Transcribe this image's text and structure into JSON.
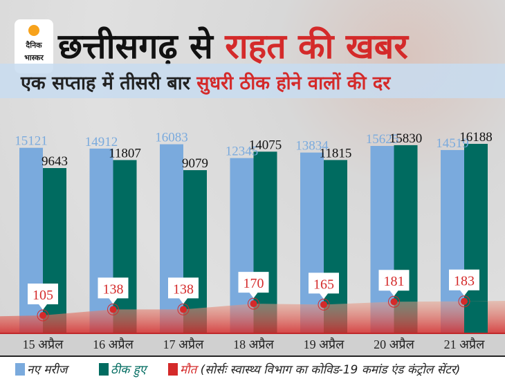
{
  "brand": {
    "logo_text": "दैनिक भास्कर",
    "colors": {
      "new": "#7aaadd",
      "recovered": "#006b60",
      "death": "#d42a2a"
    }
  },
  "header": {
    "title_black": "छत्तीसगढ़ से",
    "title_red": "राहत की खबर",
    "subtitle_black": "एक सप्ताह में तीसरी बार",
    "subtitle_red": "सुधरी ठीक होने वालों की दर"
  },
  "chart_data": {
    "type": "bar",
    "categories": [
      "15 अप्रैल",
      "16 अप्रैल",
      "17 अप्रैल",
      "18 अप्रैल",
      "19 अप्रैल",
      "20 अप्रैल",
      "21 अप्रैल"
    ],
    "series": [
      {
        "name": "नए मरीज",
        "values": [
          15121,
          14912,
          16083,
          12345,
          13834,
          15625,
          14519
        ],
        "color": "#7aaadd"
      },
      {
        "name": "ठीक हुए",
        "values": [
          9643,
          11807,
          9079,
          14075,
          11815,
          15830,
          16188
        ],
        "color": "#006b60"
      },
      {
        "name": "मौत",
        "type": "area",
        "values": [
          105,
          138,
          138,
          170,
          165,
          181,
          183
        ],
        "color": "#d42a2a"
      }
    ],
    "grid": false,
    "legend": "bottom"
  },
  "legend": {
    "items": [
      {
        "label": "नए मरीज"
      },
      {
        "label": "ठीक हुए"
      },
      {
        "label": "मौत"
      }
    ],
    "source": "(सोर्सः स्वास्थ्य विभाग का कोविड-19 कमांड एंड कंट्रोल सेंटर)"
  }
}
